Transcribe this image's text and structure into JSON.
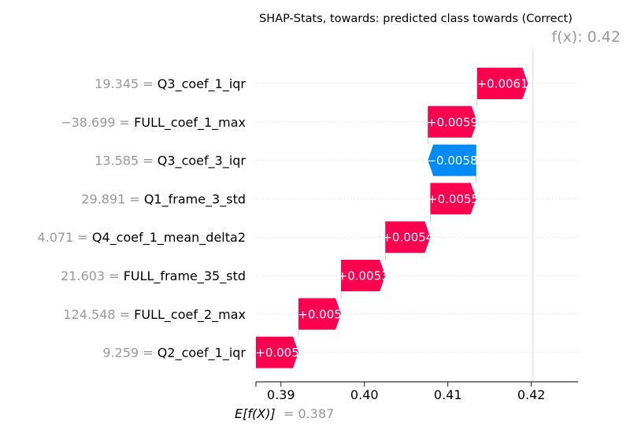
{
  "chart_data": {
    "type": "waterfall",
    "title": "SHAP-Stats, towards: predicted class towards (Correct)",
    "fx_label": "f(x): 0.42",
    "fx_value": 0.4202,
    "base_label": "E[f(X)]",
    "base_value_text": "= 0.387",
    "base_value": 0.387,
    "xlim": [
      0.387,
      0.4256
    ],
    "ticks": [
      0.39,
      0.4,
      0.41,
      0.42
    ],
    "tick_labels": [
      "0.39",
      "0.40",
      "0.41",
      "0.42"
    ],
    "features": [
      {
        "value": "19.345",
        "name": "Q3_coef_1_iqr",
        "contribution": 0.0061,
        "label": "+0.0061",
        "direction": "positive"
      },
      {
        "value": "−38.699",
        "name": "FULL_coef_1_max",
        "contribution": 0.0059,
        "label": "+0.0059",
        "direction": "positive"
      },
      {
        "value": "13.585",
        "name": "Q3_coef_3_iqr",
        "contribution": -0.0058,
        "label": "−0.0058",
        "direction": "negative"
      },
      {
        "value": "29.891",
        "name": "Q1_frame_3_std",
        "contribution": 0.0055,
        "label": "+0.0055",
        "direction": "positive"
      },
      {
        "value": "4.071",
        "name": "Q4_coef_1_mean_delta2",
        "contribution": 0.0054,
        "label": "+0.0054",
        "direction": "positive"
      },
      {
        "value": "21.603",
        "name": "FULL_frame_35_std",
        "contribution": 0.0053,
        "label": "+0.0053",
        "direction": "positive"
      },
      {
        "value": "124.548",
        "name": "FULL_coef_2_max",
        "contribution": 0.0051,
        "label": "+0.005",
        "direction": "positive"
      },
      {
        "value": "9.259",
        "name": "Q2_coef_1_iqr",
        "contribution": 0.0051,
        "label": "+0.005",
        "direction": "positive"
      }
    ],
    "colors": {
      "positive": "#ff0051",
      "negative": "#008bfb",
      "grid": "#e6e6e6",
      "muted": "#999999"
    }
  }
}
